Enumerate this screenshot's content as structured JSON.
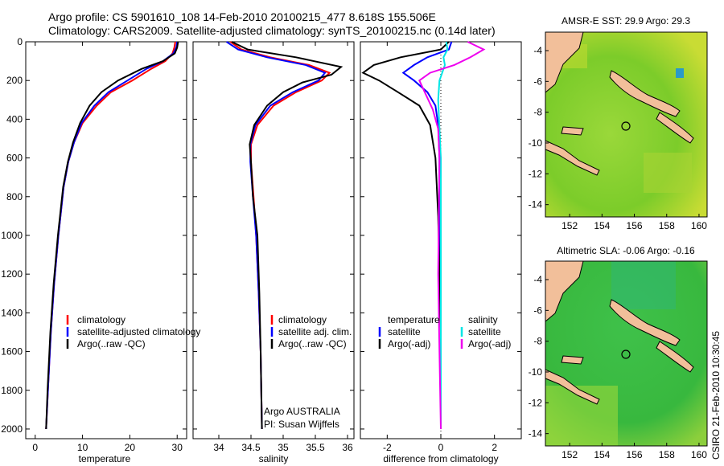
{
  "figure_title": {
    "line1": "Argo profile: CS 5901610_108 14-Feb-2010 20100215_477 8.618S 155.506E",
    "line2": "Climatology: CARS2009. Satellite-adjusted climatology: synTS_20100215.nc (0.14d later)"
  },
  "credit": "CSIRO 21-Feb-2010 10:30:45",
  "colors": {
    "climatology": "#ff0000",
    "satellite": "#0000ff",
    "argo": "#000000",
    "cyan": "#00e5e5",
    "magenta": "#ee00ee"
  },
  "chart_data": [
    {
      "type": "line",
      "name": "temperature",
      "xlabel": "temperature",
      "ylabel": "",
      "xlim": [
        -2,
        32
      ],
      "ylim": [
        2050,
        0
      ],
      "xticks": [
        "0",
        "10",
        "20",
        "30"
      ],
      "yticks": [
        "0",
        "200",
        "400",
        "600",
        "800",
        "1000",
        "1200",
        "1400",
        "1600",
        "1800",
        "2000"
      ],
      "legend": {
        "position": "lower-right",
        "entries": [
          "climatology",
          "satellite-adjusted climatology",
          "Argo(..raw -QC)"
        ]
      },
      "series": [
        {
          "name": "climatology",
          "x": [
            29.6,
            29.4,
            29.0,
            27.5,
            24.5,
            20.5,
            16,
            13,
            10,
            8.2,
            7,
            6,
            4.9,
            4.0,
            3.3,
            2.7,
            2.3
          ],
          "y": [
            0,
            30,
            60,
            100,
            140,
            200,
            260,
            330,
            420,
            520,
            620,
            750,
            1000,
            1250,
            1500,
            1800,
            2000
          ]
        },
        {
          "name": "satellite-adjusted climatology",
          "x": [
            30.0,
            29.8,
            29.2,
            27.0,
            23.5,
            19.5,
            15.5,
            12.5,
            9.8,
            8.2,
            7,
            6,
            4.9,
            4.0,
            3.3,
            2.7,
            2.3
          ],
          "y": [
            0,
            30,
            60,
            100,
            140,
            200,
            260,
            330,
            420,
            520,
            620,
            750,
            1000,
            1250,
            1500,
            1800,
            2000
          ]
        },
        {
          "name": "Argo(..raw -QC)",
          "x": [
            30.2,
            30.0,
            29.5,
            27.0,
            22.5,
            17.5,
            14.0,
            11.5,
            9.5,
            8.0,
            6.9,
            5.9,
            4.8,
            3.9,
            3.2,
            2.6,
            2.3
          ],
          "y": [
            0,
            30,
            60,
            100,
            140,
            200,
            260,
            330,
            420,
            520,
            620,
            750,
            1000,
            1250,
            1500,
            1800,
            2000
          ]
        }
      ]
    },
    {
      "type": "line",
      "name": "salinity",
      "xlabel": "salinity",
      "ylabel": "",
      "xlim": [
        33.6,
        36.1
      ],
      "ylim": [
        2050,
        0
      ],
      "xticks": [
        "34",
        "34.5",
        "35",
        "35.5",
        "36"
      ],
      "legend": {
        "position": "lower-right",
        "entries": [
          "climatology",
          "satellite adj. clim.",
          "Argo(..raw -QC)"
        ]
      },
      "annotation": {
        "line1": "Argo AUSTRALIA",
        "line2": "PI: Susan Wijffels"
      },
      "series": [
        {
          "name": "climatology",
          "x": [
            34.18,
            34.35,
            34.8,
            35.4,
            35.72,
            35.6,
            35.2,
            34.85,
            34.6,
            34.5,
            34.5,
            34.54,
            34.58,
            34.62,
            34.65,
            34.67
          ],
          "y": [
            0,
            40,
            80,
            120,
            160,
            200,
            260,
            330,
            430,
            530,
            620,
            800,
            1000,
            1300,
            1600,
            2000
          ]
        },
        {
          "name": "satellite adj. clim.",
          "x": [
            34.12,
            34.3,
            34.75,
            35.35,
            35.65,
            35.55,
            35.15,
            34.8,
            34.57,
            34.49,
            34.49,
            34.53,
            34.58,
            34.62,
            34.65,
            34.67
          ],
          "y": [
            0,
            40,
            80,
            120,
            160,
            200,
            260,
            330,
            430,
            530,
            620,
            800,
            1000,
            1300,
            1600,
            2000
          ]
        },
        {
          "name": "Argo(..raw -QC)",
          "x": [
            34.2,
            34.45,
            35.2,
            35.9,
            35.75,
            35.3,
            35.0,
            34.75,
            34.55,
            34.48,
            34.5,
            34.53,
            34.6,
            34.63,
            34.65,
            34.67
          ],
          "y": [
            0,
            40,
            80,
            130,
            170,
            210,
            260,
            330,
            430,
            530,
            620,
            800,
            1000,
            1300,
            1600,
            2000
          ]
        }
      ]
    },
    {
      "type": "line",
      "name": "difference",
      "xlabel": "difference from climatology",
      "ylabel": "",
      "xlim": [
        -3,
        3
      ],
      "ylim": [
        2050,
        0
      ],
      "xticks": [
        "-2",
        "0",
        "2"
      ],
      "legend": {
        "position": "lower-right",
        "entries": [
          "temperature",
          "satellite",
          "Argo(-adj)",
          "salinity",
          "satellite",
          "Argo(-adj)"
        ]
      },
      "series": [
        {
          "name": "temperature satellite",
          "x": [
            0.4,
            0.3,
            -0.5,
            -1.0,
            -1.4,
            -1.0,
            -0.5,
            -0.2,
            -0.1,
            -0.05,
            -0.05,
            0,
            0,
            0,
            0
          ],
          "y": [
            0,
            40,
            80,
            120,
            160,
            200,
            260,
            330,
            430,
            600,
            900,
            1200,
            1500,
            1800,
            2000
          ]
        },
        {
          "name": "temperature Argo(-adj)",
          "x": [
            0.3,
            0.0,
            -1.5,
            -2.5,
            -2.9,
            -2.3,
            -1.6,
            -0.8,
            -0.4,
            -0.2,
            -0.1,
            -0.05,
            0,
            0,
            0
          ],
          "y": [
            0,
            40,
            80,
            120,
            160,
            200,
            260,
            330,
            430,
            600,
            900,
            1200,
            1500,
            1800,
            2000
          ]
        },
        {
          "name": "salinity satellite",
          "x": [
            0.2,
            0.25,
            0.1,
            0.15,
            0.05,
            -0.05,
            -0.1,
            -0.05,
            0,
            0,
            0,
            0,
            0
          ],
          "y": [
            0,
            40,
            80,
            120,
            160,
            200,
            300,
            450,
            600,
            900,
            1200,
            1600,
            2000
          ]
        },
        {
          "name": "salinity Argo(-adj)",
          "x": [
            1.0,
            1.6,
            1.1,
            0.5,
            -0.4,
            -0.8,
            -0.6,
            -0.3,
            -0.1,
            -0.05,
            -0.1,
            -0.05,
            0
          ],
          "y": [
            0,
            40,
            80,
            120,
            160,
            200,
            260,
            350,
            450,
            600,
            1200,
            1600,
            2000
          ]
        }
      ]
    },
    {
      "type": "heatmap",
      "name": "sst-map",
      "title": "AMSR-E SST: 29.9 Argo: 29.3",
      "xlim": [
        150.5,
        160.5
      ],
      "ylim": [
        -14.8,
        -2.8
      ],
      "xticks": [
        "152",
        "154",
        "156",
        "158",
        "160"
      ],
      "yticks": [
        "-4",
        "-6",
        "-8",
        "-10",
        "-12",
        "-14"
      ],
      "argo_position": {
        "lon": 155.506,
        "lat": -8.618
      }
    },
    {
      "type": "heatmap",
      "name": "sla-map",
      "title": "Altimetric SLA: -0.06 Argo: -0.16",
      "xlim": [
        150.5,
        160.5
      ],
      "ylim": [
        -14.8,
        -2.8
      ],
      "xticks": [
        "152",
        "154",
        "156",
        "158",
        "160"
      ],
      "yticks": [
        "-4",
        "-6",
        "-8",
        "-10",
        "-12",
        "-14"
      ],
      "argo_position": {
        "lon": 155.506,
        "lat": -8.618
      }
    }
  ]
}
